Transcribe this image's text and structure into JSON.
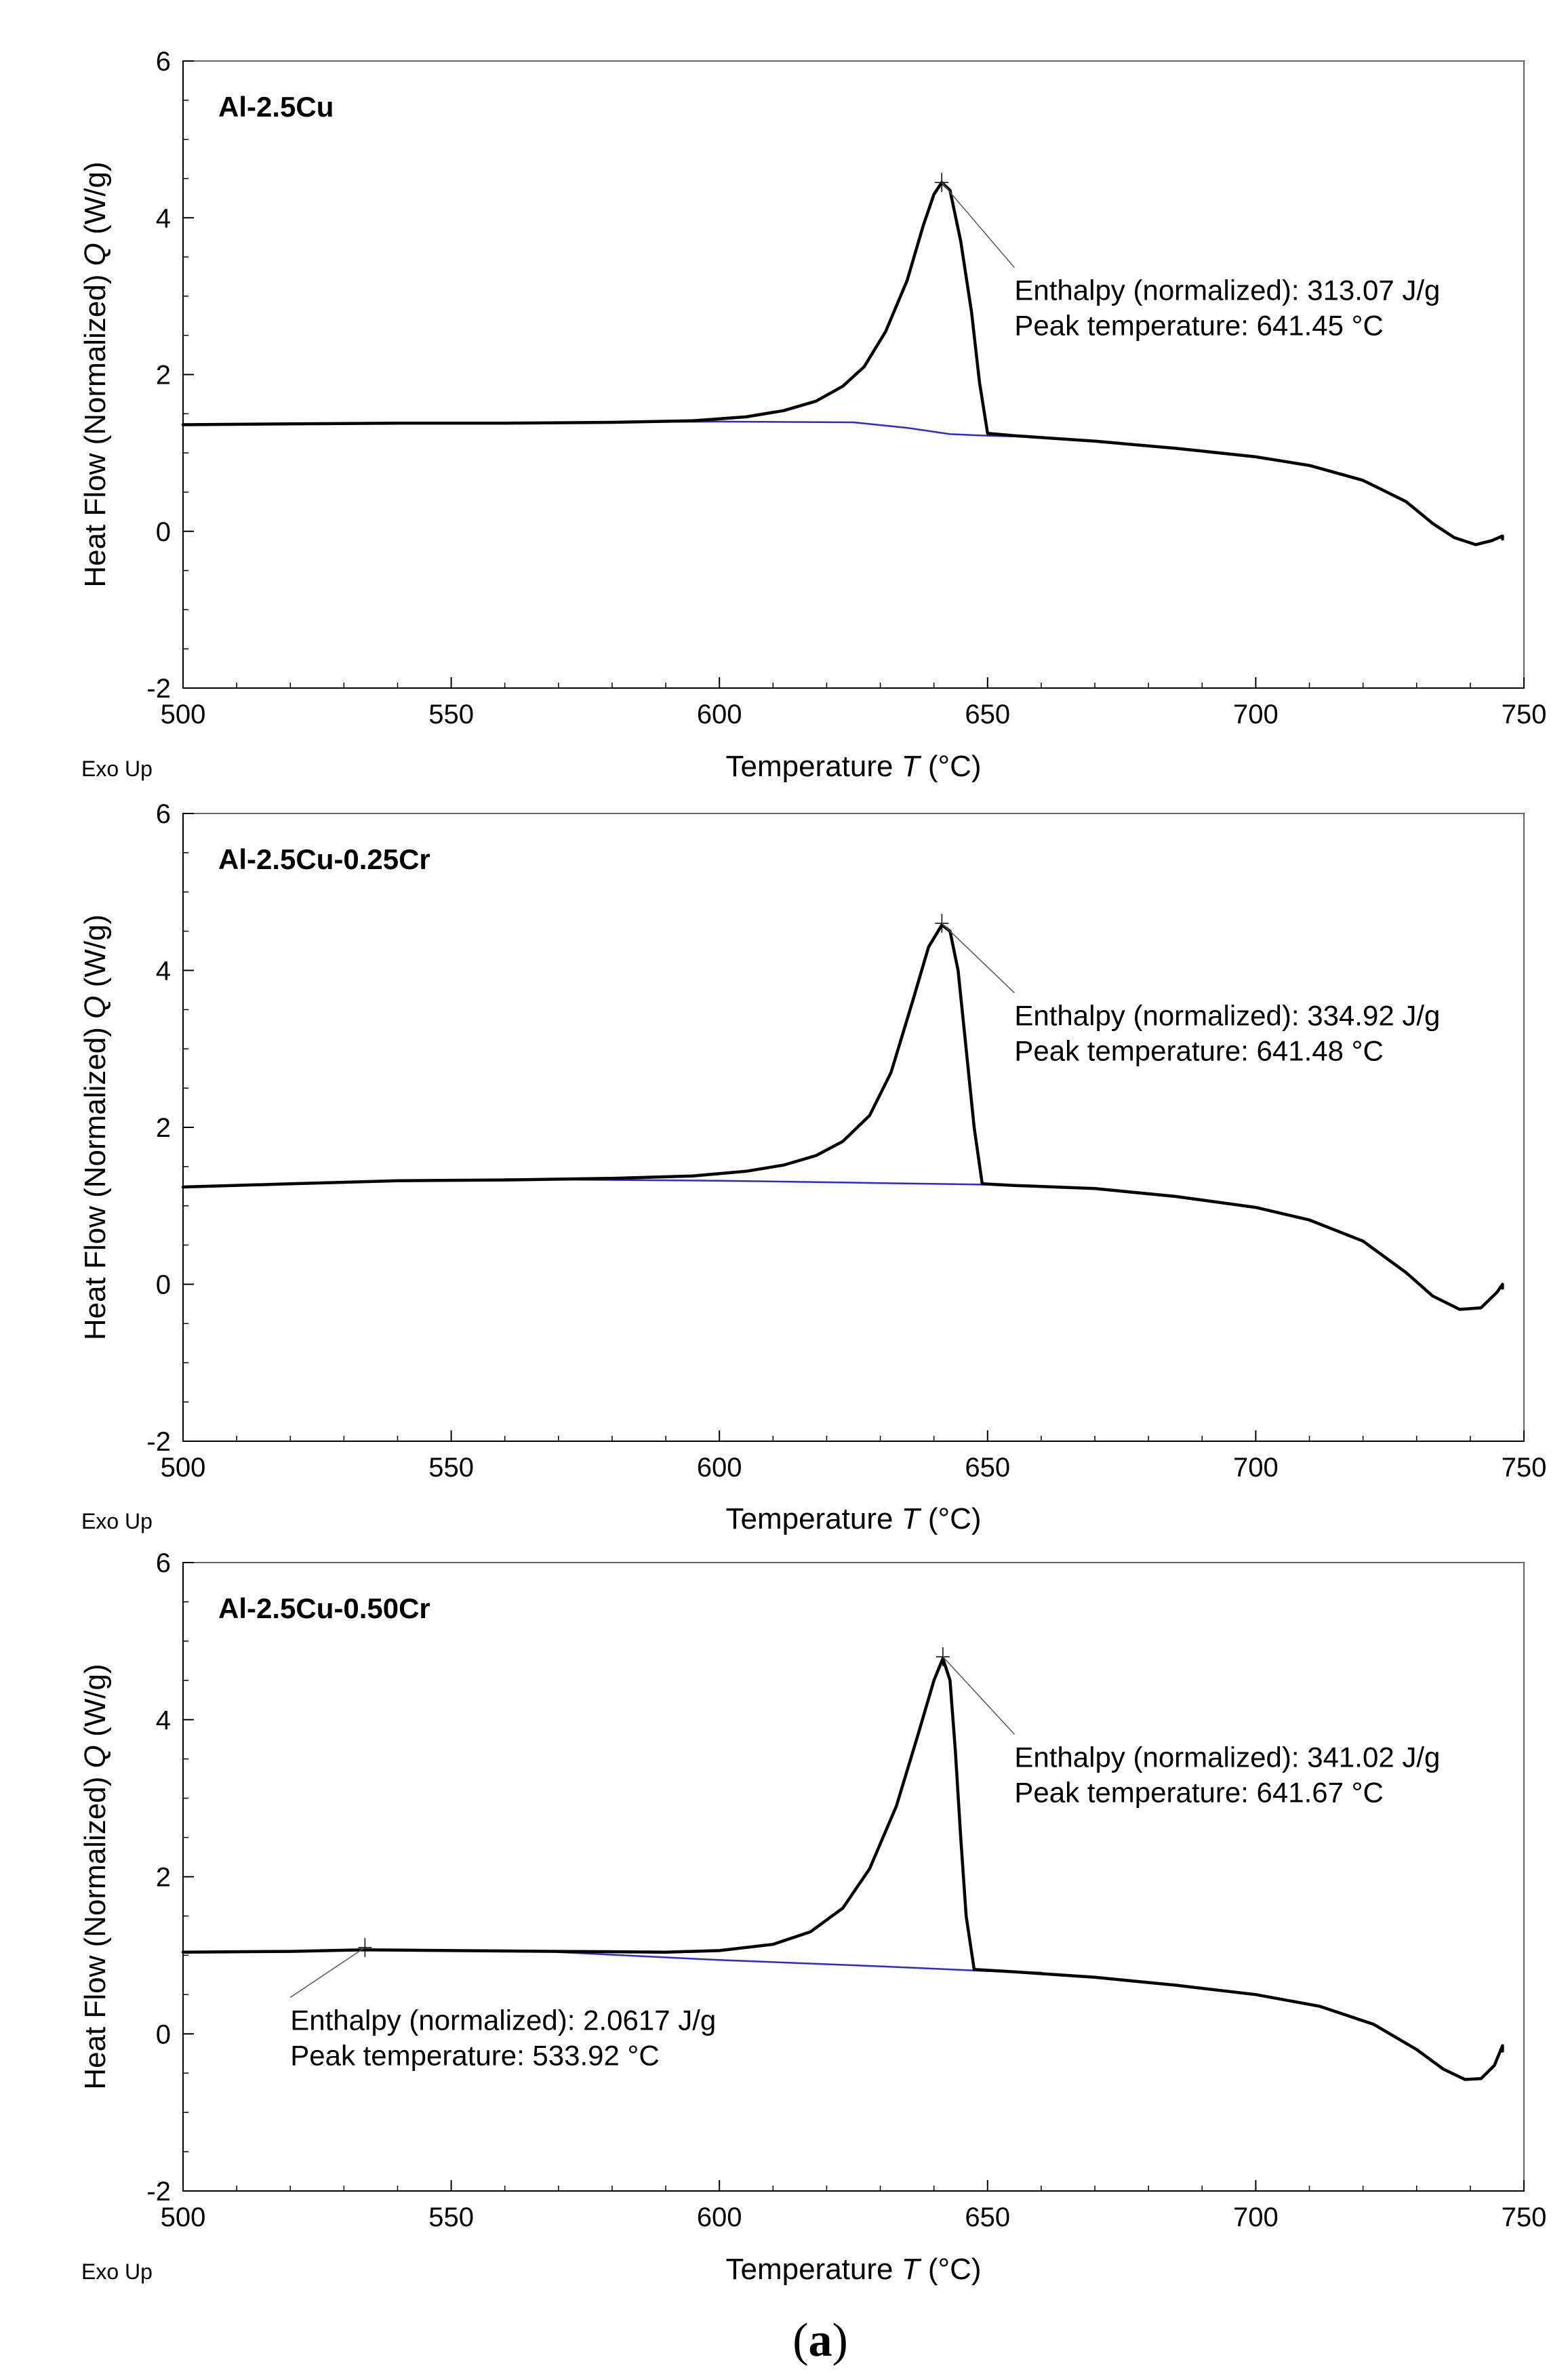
{
  "figure_caption": {
    "open": "(",
    "letter": "a",
    "close": ")"
  },
  "chart_data": [
    {
      "type": "line",
      "sample_label": "Al-2.5Cu",
      "xlabel": {
        "prefix": "Temperature ",
        "symbol": "T",
        "suffix": " (°C)"
      },
      "ylabel": {
        "prefix": "Heat Flow (Normalized) ",
        "symbol": "Q",
        "suffix": " (W/g)"
      },
      "corner_label": "Exo Up",
      "xlim": [
        500,
        750
      ],
      "ylim": [
        -2,
        6
      ],
      "xticks": [
        "500",
        "550",
        "600",
        "650",
        "700",
        "750"
      ],
      "yticks": [
        "-2",
        "0",
        "2",
        "4",
        "6"
      ],
      "annotations": [
        {
          "line1": "Enthalpy (normalized): 313.07 J/g",
          "line2": "Peak temperature: 641.45 °C",
          "peak_x": 641.45,
          "peak_y": 4.45,
          "text_x": 655,
          "text_y": 2.95
        }
      ],
      "series": [
        {
          "name": "DSC signal",
          "color": "#000000",
          "points": [
            [
              500,
              1.36
            ],
            [
              520,
              1.37
            ],
            [
              540,
              1.38
            ],
            [
              560,
              1.38
            ],
            [
              580,
              1.39
            ],
            [
              595,
              1.41
            ],
            [
              605,
              1.46
            ],
            [
              612,
              1.54
            ],
            [
              618,
              1.66
            ],
            [
              623,
              1.85
            ],
            [
              627,
              2.1
            ],
            [
              631,
              2.55
            ],
            [
              635,
              3.2
            ],
            [
              638,
              3.9
            ],
            [
              640,
              4.3
            ],
            [
              641.45,
              4.45
            ],
            [
              643,
              4.35
            ],
            [
              645,
              3.7
            ],
            [
              647,
              2.8
            ],
            [
              648.5,
              1.9
            ],
            [
              650,
              1.25
            ],
            [
              655,
              1.22
            ],
            [
              670,
              1.15
            ],
            [
              685,
              1.06
            ],
            [
              700,
              0.95
            ],
            [
              710,
              0.84
            ],
            [
              720,
              0.65
            ],
            [
              728,
              0.38
            ],
            [
              733,
              0.1
            ],
            [
              737,
              -0.08
            ],
            [
              741,
              -0.17
            ],
            [
              744,
              -0.12
            ],
            [
              746,
              -0.06
            ],
            [
              746,
              -0.1
            ]
          ]
        },
        {
          "name": "Baseline",
          "color": "#2a2ad6",
          "points": [
            [
              550,
              1.38
            ],
            [
              600,
              1.4
            ],
            [
              625,
              1.39
            ],
            [
              635,
              1.32
            ],
            [
              643,
              1.24
            ],
            [
              650,
              1.22
            ],
            [
              655,
              1.21
            ]
          ]
        }
      ]
    },
    {
      "type": "line",
      "sample_label": "Al-2.5Cu-0.25Cr",
      "xlabel": {
        "prefix": "Temperature ",
        "symbol": "T",
        "suffix": " (°C)"
      },
      "ylabel": {
        "prefix": "Heat Flow (Normalized) ",
        "symbol": "Q",
        "suffix": " (W/g)"
      },
      "corner_label": "Exo Up",
      "xlim": [
        500,
        750
      ],
      "ylim": [
        -2,
        6
      ],
      "xticks": [
        "500",
        "550",
        "600",
        "650",
        "700",
        "750"
      ],
      "yticks": [
        "-2",
        "0",
        "2",
        "4",
        "6"
      ],
      "annotations": [
        {
          "line1": "Enthalpy (normalized): 334.92 J/g",
          "line2": "Peak temperature: 641.48 °C",
          "peak_x": 641.48,
          "peak_y": 4.6,
          "text_x": 655,
          "text_y": 3.3
        }
      ],
      "series": [
        {
          "name": "DSC signal",
          "color": "#000000",
          "points": [
            [
              500,
              1.24
            ],
            [
              520,
              1.28
            ],
            [
              540,
              1.32
            ],
            [
              560,
              1.33
            ],
            [
              580,
              1.35
            ],
            [
              595,
              1.38
            ],
            [
              605,
              1.44
            ],
            [
              612,
              1.52
            ],
            [
              618,
              1.64
            ],
            [
              623,
              1.82
            ],
            [
              628,
              2.15
            ],
            [
              632,
              2.7
            ],
            [
              636,
              3.6
            ],
            [
              639,
              4.3
            ],
            [
              641.48,
              4.58
            ],
            [
              643,
              4.5
            ],
            [
              644.5,
              4.0
            ],
            [
              646,
              3.0
            ],
            [
              647.5,
              2.0
            ],
            [
              649,
              1.28
            ],
            [
              655,
              1.26
            ],
            [
              670,
              1.22
            ],
            [
              685,
              1.12
            ],
            [
              700,
              0.98
            ],
            [
              710,
              0.82
            ],
            [
              720,
              0.55
            ],
            [
              728,
              0.15
            ],
            [
              733,
              -0.15
            ],
            [
              738,
              -0.32
            ],
            [
              742,
              -0.3
            ],
            [
              745,
              -0.1
            ],
            [
              746,
              0.0
            ],
            [
              746,
              -0.05
            ]
          ]
        },
        {
          "name": "Baseline",
          "color": "#2a2ad6",
          "points": [
            [
              560,
              1.34
            ],
            [
              600,
              1.32
            ],
            [
              630,
              1.29
            ],
            [
              650,
              1.27
            ],
            [
              660,
              1.25
            ]
          ]
        }
      ]
    },
    {
      "type": "line",
      "sample_label": "Al-2.5Cu-0.50Cr",
      "xlabel": {
        "prefix": "Temperature ",
        "symbol": "T",
        "suffix": " (°C)"
      },
      "ylabel": {
        "prefix": "Heat Flow (Normalized) ",
        "symbol": "Q",
        "suffix": " (W/g)"
      },
      "corner_label": "Exo Up",
      "xlim": [
        500,
        750
      ],
      "ylim": [
        -2,
        6
      ],
      "xticks": [
        "500",
        "550",
        "600",
        "650",
        "700",
        "750"
      ],
      "yticks": [
        "-2",
        "0",
        "2",
        "4",
        "6"
      ],
      "annotations": [
        {
          "line1": "Enthalpy (normalized): 341.02 J/g",
          "line2": "Peak temperature: 641.67 °C",
          "peak_x": 641.67,
          "peak_y": 4.8,
          "text_x": 655,
          "text_y": 3.4
        },
        {
          "line1": "Enthalpy (normalized): 2.0617 J/g",
          "line2": "Peak temperature: 533.92 °C",
          "peak_x": 533.92,
          "peak_y": 1.1,
          "text_x": 520,
          "text_y": 0.05
        }
      ],
      "series": [
        {
          "name": "DSC signal",
          "color": "#000000",
          "points": [
            [
              500,
              1.04
            ],
            [
              520,
              1.05
            ],
            [
              533.92,
              1.07
            ],
            [
              550,
              1.06
            ],
            [
              570,
              1.05
            ],
            [
              590,
              1.04
            ],
            [
              600,
              1.06
            ],
            [
              610,
              1.14
            ],
            [
              617,
              1.3
            ],
            [
              623,
              1.6
            ],
            [
              628,
              2.1
            ],
            [
              633,
              2.9
            ],
            [
              637,
              3.8
            ],
            [
              640,
              4.5
            ],
            [
              641.67,
              4.78
            ],
            [
              643,
              4.5
            ],
            [
              644,
              3.6
            ],
            [
              645,
              2.5
            ],
            [
              646,
              1.5
            ],
            [
              647.5,
              0.82
            ],
            [
              655,
              0.79
            ],
            [
              670,
              0.72
            ],
            [
              685,
              0.62
            ],
            [
              700,
              0.5
            ],
            [
              712,
              0.35
            ],
            [
              722,
              0.12
            ],
            [
              730,
              -0.2
            ],
            [
              735,
              -0.45
            ],
            [
              739,
              -0.58
            ],
            [
              742,
              -0.57
            ],
            [
              744.5,
              -0.4
            ],
            [
              746,
              -0.15
            ],
            [
              746,
              -0.22
            ]
          ]
        },
        {
          "name": "Baseline",
          "color": "#2a2ad6",
          "points": [
            [
              570,
              1.04
            ],
            [
              600,
              0.94
            ],
            [
              630,
              0.86
            ],
            [
              650,
              0.8
            ],
            [
              660,
              0.78
            ]
          ]
        }
      ]
    }
  ]
}
